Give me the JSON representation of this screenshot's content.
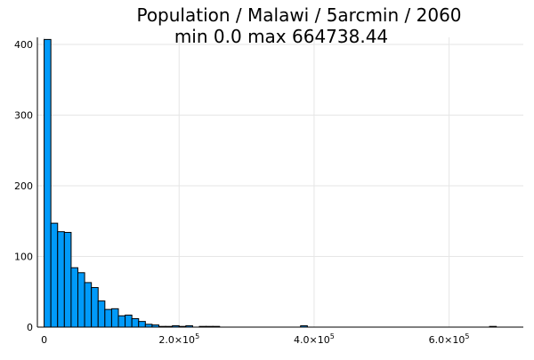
{
  "chart_data": {
    "type": "bar",
    "title": "Population / Malawi / 5arcmin / 2060",
    "subtitle": "min 0.0  max 664738.44",
    "xlabel": "",
    "ylabel": "",
    "bin_width": 10000,
    "bin_start": 0,
    "xlim": [
      -10000,
      710000
    ],
    "ylim": [
      0,
      410
    ],
    "grid": true,
    "legend": "none",
    "colors": {
      "bar_fill": "#009af9",
      "bar_stroke": "#000000",
      "grid": "#e6e6e6"
    },
    "counts": [
      407,
      147,
      135,
      134,
      84,
      77,
      63,
      56,
      37,
      25,
      26,
      16,
      17,
      12,
      8,
      4,
      3,
      1,
      1,
      2,
      1,
      2,
      0,
      1,
      1,
      1,
      0,
      0,
      0,
      0,
      0,
      0,
      0,
      0,
      0,
      0,
      0,
      0,
      2,
      0,
      0,
      0,
      0,
      0,
      0,
      0,
      0,
      0,
      0,
      0,
      0,
      0,
      0,
      0,
      0,
      0,
      0,
      0,
      0,
      0,
      0,
      0,
      0,
      0,
      0,
      0,
      1
    ],
    "x_ticks": [
      {
        "value": 0,
        "mantissa": "0",
        "exponent": ""
      },
      {
        "value": 200000,
        "mantissa": "2.0×10",
        "exponent": "5"
      },
      {
        "value": 400000,
        "mantissa": "4.0×10",
        "exponent": "5"
      },
      {
        "value": 600000,
        "mantissa": "6.0×10",
        "exponent": "5"
      }
    ],
    "y_ticks": [
      {
        "value": 0,
        "label": "0"
      },
      {
        "value": 100,
        "label": "100"
      },
      {
        "value": 200,
        "label": "200"
      },
      {
        "value": 300,
        "label": "300"
      },
      {
        "value": 400,
        "label": "400"
      }
    ]
  }
}
